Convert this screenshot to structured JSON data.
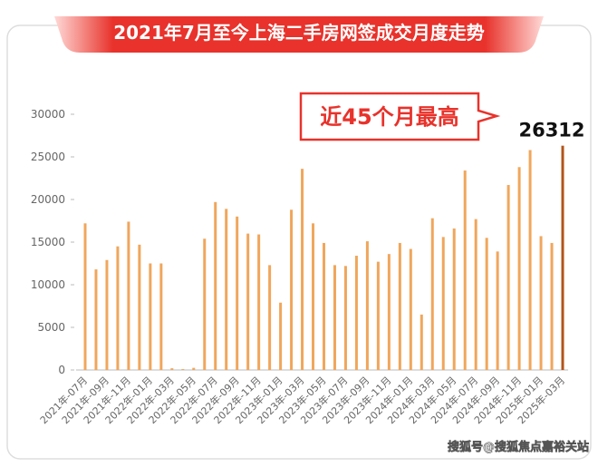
{
  "chart_data": {
    "type": "bar",
    "title": "2021年7月至今上海二手房网签成交月度走势",
    "annotation": "近45个月最高",
    "watermark": "搜狐号@搜狐焦点嘉裕关站",
    "categories": [
      "2021年-07月",
      null,
      "2021年-09月",
      null,
      "2021年-11月",
      null,
      "2022年-01月",
      null,
      "2022年-03月",
      null,
      "2022年-05月",
      null,
      "2022年-07月",
      null,
      "2022年-09月",
      null,
      "2022年-11月",
      null,
      "2023年-01月",
      null,
      "2023年-03月",
      null,
      "2023年-05月",
      null,
      "2023年-07月",
      null,
      "2023年-09月",
      null,
      "2023年-11月",
      null,
      "2024年-01月",
      null,
      "2024年-03月",
      null,
      "2024年-05月",
      null,
      "2024年-07月",
      null,
      "2024年-09月",
      null,
      "2024年-11月",
      null,
      "2025年-01月",
      null,
      "2025年-03月"
    ],
    "values": [
      17200,
      11800,
      12900,
      14500,
      17400,
      14700,
      12500,
      12500,
      200,
      100,
      250,
      15400,
      19700,
      18900,
      18000,
      16000,
      15900,
      12300,
      7900,
      18800,
      23600,
      17200,
      14900,
      12300,
      12200,
      13400,
      15100,
      12700,
      13600,
      14900,
      14200,
      6500,
      17800,
      15600,
      16600,
      23400,
      17700,
      15500,
      13900,
      21700,
      23800,
      25800,
      15700,
      14900,
      26312
    ],
    "colors": [
      "#f0a65c",
      "#f0a65c",
      "#f0a65c",
      "#f0a65c",
      "#f0a65c",
      "#f0a65c",
      "#f0a65c",
      "#f0a65c",
      "#f0a65c",
      "#f0a65c",
      "#f0a65c",
      "#f0a65c",
      "#f0a65c",
      "#f0a65c",
      "#f0a65c",
      "#f0a65c",
      "#f0a65c",
      "#f0a65c",
      "#f0a65c",
      "#f0a65c",
      "#f0a65c",
      "#f0a65c",
      "#f0a65c",
      "#f0a65c",
      "#f0a65c",
      "#f0a65c",
      "#f0a65c",
      "#f0a65c",
      "#f0a65c",
      "#f0a65c",
      "#f0a65c",
      "#f0a65c",
      "#f0a65c",
      "#f0a65c",
      "#f0a65c",
      "#f0a65c",
      "#f0a65c",
      "#f0a65c",
      "#f0a65c",
      "#f0a65c",
      "#f0a65c",
      "#f0a65c",
      "#f0a65c",
      "#f0a65c",
      "#b3541c"
    ],
    "ylim": [
      0,
      30000
    ],
    "yticks": [
      0,
      5000,
      10000,
      15000,
      20000,
      25000,
      30000
    ],
    "grid": false
  }
}
